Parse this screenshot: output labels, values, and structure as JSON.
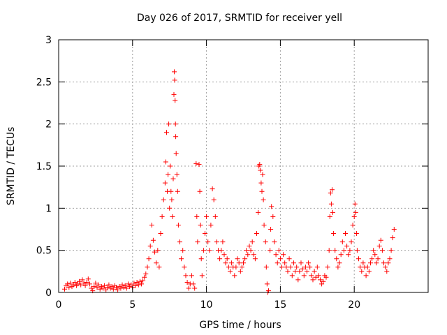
{
  "chart_data": {
    "type": "scatter",
    "title": "Day 026 of 2017, SRMTID for receiver yell",
    "xlabel": "GPS time / hours",
    "ylabel": "SRMTID / TECUs",
    "xlim": [
      0,
      25
    ],
    "ylim": [
      0,
      3
    ],
    "xticks": [
      0,
      5,
      10,
      15,
      20
    ],
    "xtick_labels": [
      "0",
      "5",
      "10",
      "15",
      "20"
    ],
    "yticks": [
      0,
      0.5,
      1,
      1.5,
      2,
      2.5,
      3
    ],
    "ytick_labels": [
      "0",
      "0.5",
      "1",
      "1.5",
      "2",
      "2.5",
      "3"
    ],
    "grid": true,
    "marker": "+",
    "color": "#ff0000",
    "series": [
      {
        "name": "yell",
        "points": [
          [
            0.4,
            0.04
          ],
          [
            0.5,
            0.08
          ],
          [
            0.6,
            0.1
          ],
          [
            0.7,
            0.06
          ],
          [
            0.8,
            0.11
          ],
          [
            0.9,
            0.07
          ],
          [
            1.0,
            0.09
          ],
          [
            1.1,
            0.12
          ],
          [
            1.2,
            0.08
          ],
          [
            1.3,
            0.1
          ],
          [
            1.4,
            0.13
          ],
          [
            1.5,
            0.09
          ],
          [
            1.6,
            0.15
          ],
          [
            1.7,
            0.11
          ],
          [
            1.8,
            0.08
          ],
          [
            1.9,
            0.12
          ],
          [
            2.0,
            0.16
          ],
          [
            2.1,
            0.1
          ],
          [
            2.2,
            0.05
          ],
          [
            2.3,
            0.02
          ],
          [
            2.4,
            0.07
          ],
          [
            2.5,
            0.11
          ],
          [
            2.6,
            0.06
          ],
          [
            2.7,
            0.09
          ],
          [
            2.8,
            0.04
          ],
          [
            2.9,
            0.07
          ],
          [
            3.0,
            0.05
          ],
          [
            3.1,
            0.08
          ],
          [
            3.2,
            0.03
          ],
          [
            3.3,
            0.06
          ],
          [
            3.4,
            0.09
          ],
          [
            3.5,
            0.05
          ],
          [
            3.6,
            0.07
          ],
          [
            3.7,
            0.04
          ],
          [
            3.8,
            0.08
          ],
          [
            3.9,
            0.06
          ],
          [
            4.0,
            0.03
          ],
          [
            4.1,
            0.07
          ],
          [
            4.2,
            0.05
          ],
          [
            4.3,
            0.09
          ],
          [
            4.4,
            0.06
          ],
          [
            4.5,
            0.08
          ],
          [
            4.6,
            0.05
          ],
          [
            4.7,
            0.1
          ],
          [
            4.8,
            0.07
          ],
          [
            4.9,
            0.09
          ],
          [
            5.0,
            0.06
          ],
          [
            5.1,
            0.11
          ],
          [
            5.2,
            0.08
          ],
          [
            5.3,
            0.12
          ],
          [
            5.4,
            0.09
          ],
          [
            5.5,
            0.13
          ],
          [
            5.6,
            0.1
          ],
          [
            5.7,
            0.14
          ],
          [
            5.8,
            0.18
          ],
          [
            5.9,
            0.22
          ],
          [
            6.0,
            0.3
          ],
          [
            6.1,
            0.4
          ],
          [
            6.2,
            0.55
          ],
          [
            6.3,
            0.8
          ],
          [
            6.4,
            0.62
          ],
          [
            6.5,
            0.48
          ],
          [
            6.6,
            0.35
          ],
          [
            6.7,
            0.5
          ],
          [
            6.8,
            0.3
          ],
          [
            6.9,
            0.7
          ],
          [
            7.0,
            0.9
          ],
          [
            7.1,
            1.1
          ],
          [
            7.2,
            1.3
          ],
          [
            7.25,
            1.55
          ],
          [
            7.3,
            1.9
          ],
          [
            7.35,
            1.2
          ],
          [
            7.4,
            1.4
          ],
          [
            7.45,
            2.0
          ],
          [
            7.5,
            1.0
          ],
          [
            7.55,
            1.5
          ],
          [
            7.6,
            1.2
          ],
          [
            7.65,
            1.1
          ],
          [
            7.7,
            0.9
          ],
          [
            7.75,
            1.35
          ],
          [
            7.8,
            2.35
          ],
          [
            7.82,
            2.62
          ],
          [
            7.85,
            2.52
          ],
          [
            7.88,
            2.28
          ],
          [
            7.9,
            2.0
          ],
          [
            7.92,
            1.85
          ],
          [
            7.95,
            1.65
          ],
          [
            8.0,
            1.4
          ],
          [
            8.05,
            1.2
          ],
          [
            8.1,
            0.8
          ],
          [
            8.2,
            0.6
          ],
          [
            8.3,
            0.4
          ],
          [
            8.4,
            0.5
          ],
          [
            8.5,
            0.3
          ],
          [
            8.6,
            0.2
          ],
          [
            8.7,
            0.12
          ],
          [
            8.8,
            0.05
          ],
          [
            8.9,
            0.1
          ],
          [
            9.0,
            0.2
          ],
          [
            9.1,
            0.1
          ],
          [
            9.2,
            0.05
          ],
          [
            9.3,
            1.53
          ],
          [
            9.35,
            0.9
          ],
          [
            9.4,
            0.6
          ],
          [
            9.5,
            1.52
          ],
          [
            9.55,
            1.2
          ],
          [
            9.6,
            0.8
          ],
          [
            9.65,
            0.4
          ],
          [
            9.7,
            0.2
          ],
          [
            9.8,
            0.5
          ],
          [
            9.9,
            0.7
          ],
          [
            10.0,
            0.9
          ],
          [
            10.1,
            0.6
          ],
          [
            10.2,
            0.5
          ],
          [
            10.3,
            0.8
          ],
          [
            10.4,
            1.23
          ],
          [
            10.5,
            1.1
          ],
          [
            10.6,
            0.9
          ],
          [
            10.7,
            0.6
          ],
          [
            10.8,
            0.5
          ],
          [
            10.9,
            0.4
          ],
          [
            11.0,
            0.5
          ],
          [
            11.1,
            0.6
          ],
          [
            11.2,
            0.45
          ],
          [
            11.3,
            0.35
          ],
          [
            11.4,
            0.4
          ],
          [
            11.5,
            0.3
          ],
          [
            11.6,
            0.25
          ],
          [
            11.7,
            0.35
          ],
          [
            11.8,
            0.3
          ],
          [
            11.9,
            0.2
          ],
          [
            12.0,
            0.3
          ],
          [
            12.1,
            0.4
          ],
          [
            12.2,
            0.35
          ],
          [
            12.3,
            0.25
          ],
          [
            12.4,
            0.3
          ],
          [
            12.5,
            0.35
          ],
          [
            12.6,
            0.4
          ],
          [
            12.7,
            0.5
          ],
          [
            12.8,
            0.45
          ],
          [
            12.9,
            0.55
          ],
          [
            13.0,
            0.5
          ],
          [
            13.1,
            0.6
          ],
          [
            13.2,
            0.45
          ],
          [
            13.3,
            0.4
          ],
          [
            13.4,
            0.7
          ],
          [
            13.5,
            0.95
          ],
          [
            13.55,
            1.5
          ],
          [
            13.6,
            1.52
          ],
          [
            13.65,
            1.45
          ],
          [
            13.7,
            1.3
          ],
          [
            13.75,
            1.2
          ],
          [
            13.8,
            1.4
          ],
          [
            13.85,
            1.1
          ],
          [
            13.9,
            0.8
          ],
          [
            14.0,
            0.6
          ],
          [
            14.05,
            0.3
          ],
          [
            14.1,
            0.1
          ],
          [
            14.15,
            0.0
          ],
          [
            14.2,
            0.02
          ],
          [
            14.3,
            0.5
          ],
          [
            14.35,
            0.75
          ],
          [
            14.4,
            1.02
          ],
          [
            14.5,
            0.9
          ],
          [
            14.6,
            0.6
          ],
          [
            14.7,
            0.45
          ],
          [
            14.8,
            0.35
          ],
          [
            14.9,
            0.5
          ],
          [
            15.0,
            0.4
          ],
          [
            15.1,
            0.3
          ],
          [
            15.2,
            0.45
          ],
          [
            15.3,
            0.35
          ],
          [
            15.4,
            0.3
          ],
          [
            15.5,
            0.25
          ],
          [
            15.6,
            0.4
          ],
          [
            15.7,
            0.3
          ],
          [
            15.8,
            0.2
          ],
          [
            15.9,
            0.35
          ],
          [
            16.0,
            0.25
          ],
          [
            16.1,
            0.3
          ],
          [
            16.2,
            0.15
          ],
          [
            16.3,
            0.25
          ],
          [
            16.4,
            0.35
          ],
          [
            16.5,
            0.28
          ],
          [
            16.6,
            0.2
          ],
          [
            16.7,
            0.3
          ],
          [
            16.8,
            0.25
          ],
          [
            16.9,
            0.35
          ],
          [
            17.0,
            0.3
          ],
          [
            17.1,
            0.2
          ],
          [
            17.2,
            0.15
          ],
          [
            17.3,
            0.25
          ],
          [
            17.4,
            0.18
          ],
          [
            17.5,
            0.3
          ],
          [
            17.6,
            0.2
          ],
          [
            17.7,
            0.15
          ],
          [
            17.8,
            0.1
          ],
          [
            17.9,
            0.13
          ],
          [
            18.0,
            0.2
          ],
          [
            18.1,
            0.18
          ],
          [
            18.2,
            0.3
          ],
          [
            18.3,
            0.5
          ],
          [
            18.35,
            0.9
          ],
          [
            18.4,
            1.18
          ],
          [
            18.45,
            1.05
          ],
          [
            18.5,
            1.22
          ],
          [
            18.55,
            0.95
          ],
          [
            18.6,
            0.7
          ],
          [
            18.7,
            0.5
          ],
          [
            18.8,
            0.4
          ],
          [
            18.9,
            0.3
          ],
          [
            19.0,
            0.35
          ],
          [
            19.1,
            0.45
          ],
          [
            19.2,
            0.6
          ],
          [
            19.3,
            0.5
          ],
          [
            19.4,
            0.7
          ],
          [
            19.5,
            0.55
          ],
          [
            19.6,
            0.45
          ],
          [
            19.7,
            0.5
          ],
          [
            19.8,
            0.6
          ],
          [
            19.9,
            0.8
          ],
          [
            20.0,
            0.9
          ],
          [
            20.05,
            1.05
          ],
          [
            20.1,
            0.95
          ],
          [
            20.15,
            0.7
          ],
          [
            20.2,
            0.5
          ],
          [
            20.3,
            0.4
          ],
          [
            20.4,
            0.3
          ],
          [
            20.5,
            0.25
          ],
          [
            20.6,
            0.35
          ],
          [
            20.7,
            0.3
          ],
          [
            20.8,
            0.2
          ],
          [
            20.9,
            0.3
          ],
          [
            21.0,
            0.25
          ],
          [
            21.1,
            0.35
          ],
          [
            21.2,
            0.4
          ],
          [
            21.3,
            0.5
          ],
          [
            21.4,
            0.45
          ],
          [
            21.5,
            0.35
          ],
          [
            21.6,
            0.4
          ],
          [
            21.7,
            0.55
          ],
          [
            21.8,
            0.62
          ],
          [
            21.9,
            0.5
          ],
          [
            22.0,
            0.35
          ],
          [
            22.1,
            0.3
          ],
          [
            22.2,
            0.25
          ],
          [
            22.3,
            0.35
          ],
          [
            22.4,
            0.4
          ],
          [
            22.5,
            0.5
          ],
          [
            22.6,
            0.65
          ],
          [
            22.7,
            0.75
          ]
        ]
      }
    ]
  }
}
